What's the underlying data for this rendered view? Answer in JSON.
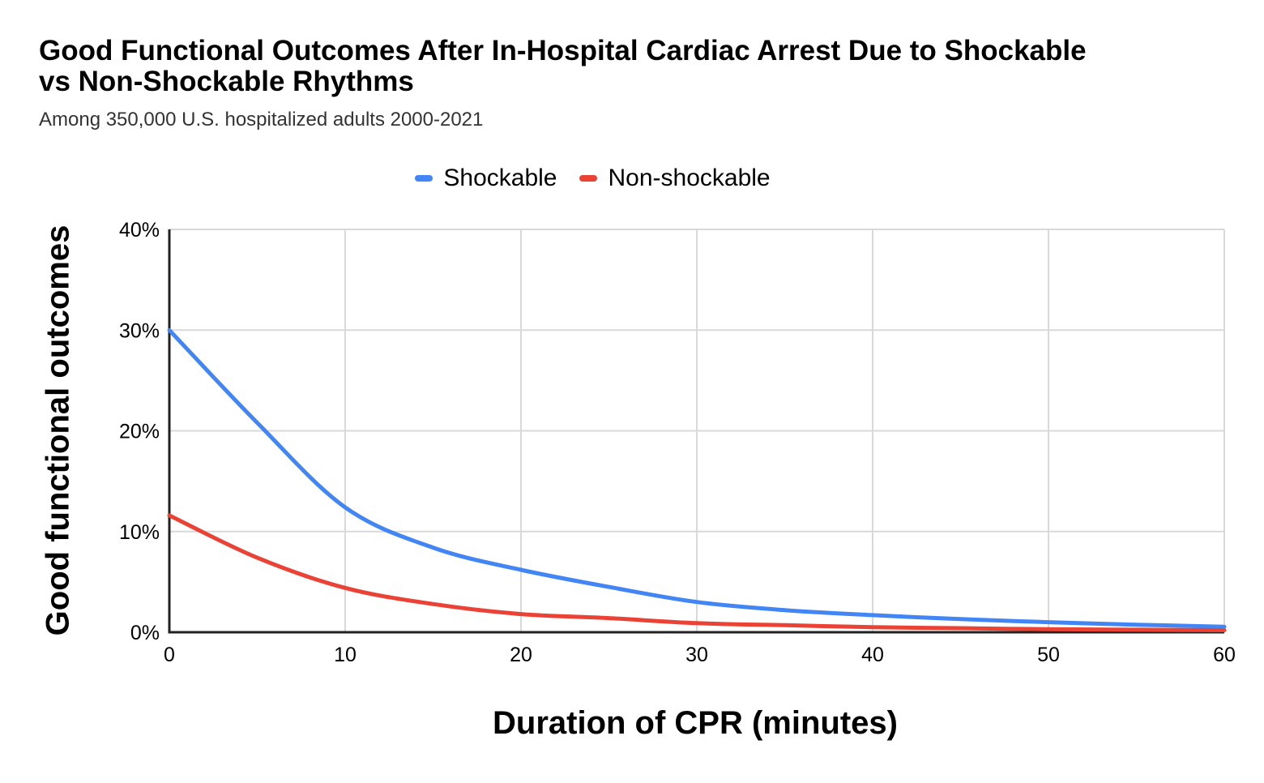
{
  "chart_data": {
    "type": "line",
    "title": "Good Functional Outcomes After In-Hospital Cardiac Arrest Due to Shockable vs Non-Shockable Rhythms",
    "subtitle": "Among 350,000 U.S. hospitalized adults 2000-2021",
    "xlabel": "Duration of CPR (minutes)",
    "ylabel": "Good functional outcomes",
    "x": [
      0,
      5,
      10,
      15,
      20,
      25,
      30,
      35,
      40,
      45,
      50,
      55,
      60
    ],
    "series": [
      {
        "name": "Shockable",
        "color": "#4285f4",
        "values": [
          30,
          20.8,
          12.4,
          8.4,
          6.2,
          4.5,
          3.0,
          2.2,
          1.7,
          1.3,
          1.0,
          0.75,
          0.55
        ]
      },
      {
        "name": "Non-shockable",
        "color": "#ea4335",
        "values": [
          11.6,
          7.4,
          4.4,
          2.8,
          1.8,
          1.4,
          0.9,
          0.7,
          0.5,
          0.4,
          0.3,
          0.25,
          0.2
        ]
      }
    ],
    "xlim": [
      0,
      60
    ],
    "ylim": [
      0,
      40
    ],
    "x_ticks": [
      0,
      10,
      20,
      30,
      40,
      50,
      60
    ],
    "y_ticks": [
      0,
      10,
      20,
      30,
      40
    ],
    "y_tick_suffix": "%",
    "grid": true,
    "legend_position": "top",
    "colors": {
      "axis": "#212121",
      "grid": "#d9d9d9",
      "tick_text": "#000000",
      "title": "#000000",
      "subtitle": "#333333"
    }
  }
}
